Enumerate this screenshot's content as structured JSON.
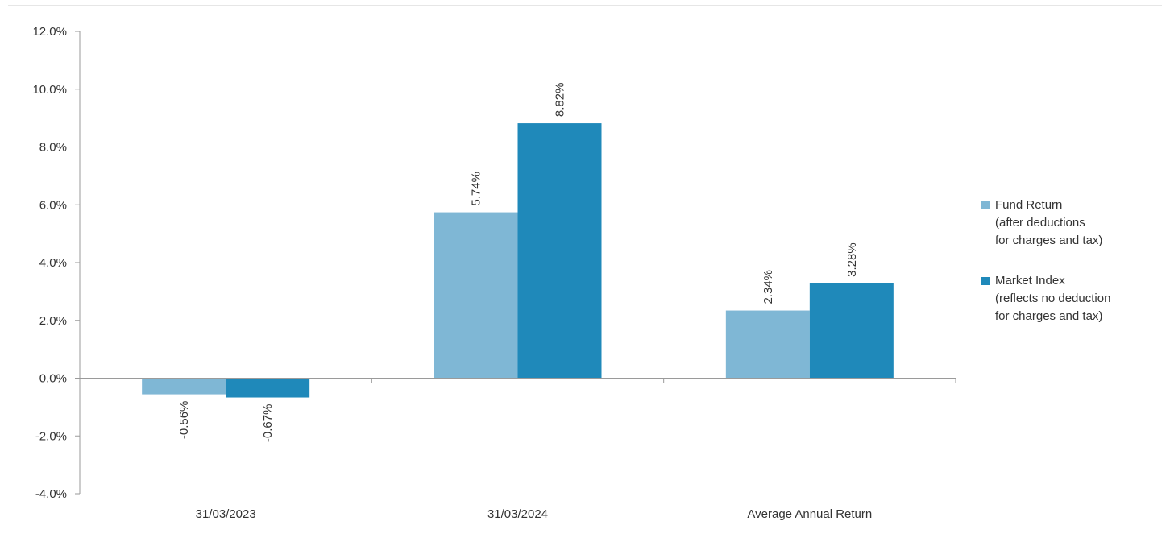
{
  "chart_data": {
    "type": "bar",
    "title": "",
    "xlabel": "",
    "ylabel": "",
    "ylim": [
      -4.0,
      12.0
    ],
    "y_ticks": [
      -4.0,
      -2.0,
      0.0,
      2.0,
      4.0,
      6.0,
      8.0,
      10.0,
      12.0
    ],
    "y_tick_labels": [
      "-4.0%",
      "-2.0%",
      "0.0%",
      "2.0%",
      "4.0%",
      "6.0%",
      "8.0%",
      "10.0%",
      "12.0%"
    ],
    "categories": [
      "31/03/2023",
      "31/03/2024",
      "Average Annual Return"
    ],
    "grid": false,
    "legend_position": "right",
    "series": [
      {
        "name": "Fund Return\n(after deductions\nfor charges and tax)",
        "color": "#7fb7d5",
        "values": [
          -0.56,
          5.74,
          2.34
        ],
        "labels": [
          "-0.56%",
          "5.74%",
          "2.34%"
        ]
      },
      {
        "name": "Market Index\n(reflects no deduction\nfor charges and tax)",
        "color": "#1f89ba",
        "values": [
          -0.67,
          8.82,
          3.28
        ],
        "labels": [
          "-0.67%",
          "8.82%",
          "3.28%"
        ]
      }
    ]
  },
  "colors": {
    "axis": "#9a9a9a",
    "text": "#333333"
  }
}
